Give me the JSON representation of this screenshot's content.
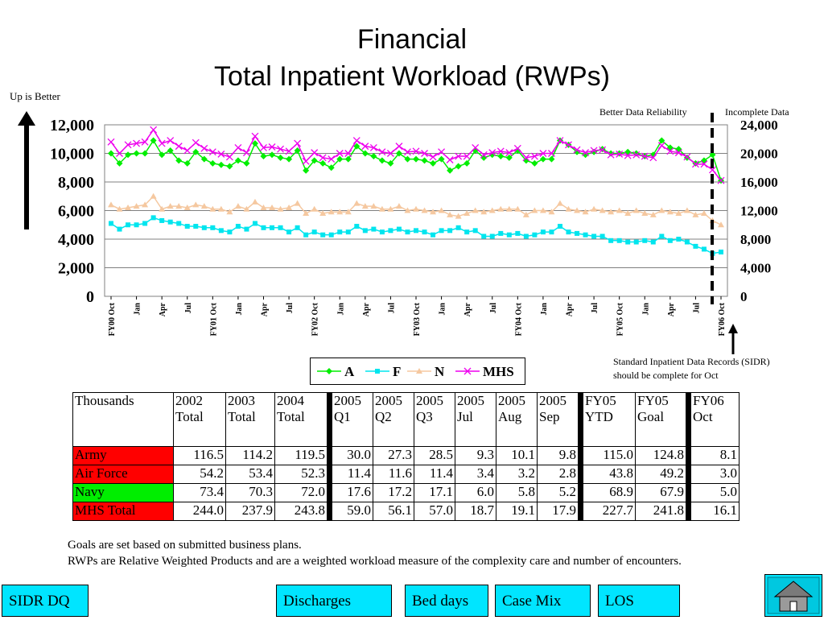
{
  "header": {
    "title_line1": "Financial",
    "title_line2": "Total Inpatient Workload (RWPs)"
  },
  "labels": {
    "up_is_better": "Up is Better",
    "better_data": "Better Data Reliability",
    "incomplete_data": "Incomplete Data",
    "sidr_note_line1": "Standard Inpatient Data Records (SIDR)",
    "sidr_note_line2": "should be complete for Oct"
  },
  "chart_data": {
    "type": "line",
    "left_axis": {
      "min": 0,
      "max": 12000,
      "ticks": [
        "0",
        "2,000",
        "4,000",
        "6,000",
        "8,000",
        "10,000",
        "12,000"
      ]
    },
    "right_axis": {
      "min": 0,
      "max": 24000,
      "ticks": [
        "0",
        "4,000",
        "8,000",
        "12,000",
        "16,000",
        "20,000",
        "24,000"
      ],
      "series": "MHS"
    },
    "x_tick_labels": [
      "FY00 Oct",
      "Jan",
      "Apr",
      "Jul",
      "FY01 Oct",
      "Jan",
      "Apr",
      "Jul",
      "FY02 Oct",
      "Jan",
      "Apr",
      "Jul",
      "FY03 Oct",
      "Jan",
      "Apr",
      "Jul",
      "FY04 Oct",
      "Jan",
      "Apr",
      "Jul",
      "FY05 Oct",
      "Jan",
      "Apr",
      "Jul",
      "FY06 Oct"
    ],
    "legend": [
      "A",
      "F",
      "N",
      "MHS"
    ],
    "colors": {
      "A": "#00ee00",
      "F": "#00e5ee",
      "N": "#f5c8a0",
      "MHS": "#ee00ee"
    },
    "series": [
      {
        "name": "A",
        "values": [
          10000,
          9300,
          9900,
          10000,
          10000,
          10900,
          9900,
          10200,
          9500,
          9300,
          10100,
          9600,
          9300,
          9200,
          9100,
          9500,
          9300,
          10700,
          9800,
          9900,
          9700,
          9600,
          10200,
          8800,
          9500,
          9300,
          9000,
          9600,
          9600,
          10500,
          10000,
          9800,
          9500,
          9300,
          10000,
          9600,
          9600,
          9500,
          9300,
          9600,
          8800,
          9100,
          9300,
          10200,
          9700,
          9900,
          9800,
          9700,
          10200,
          9500,
          9300,
          9600,
          9600,
          10900,
          10600,
          10100,
          9900,
          10100,
          10300,
          10000,
          10000,
          10100,
          10000,
          9800,
          9900,
          10900,
          10400,
          10300,
          9700,
          9300,
          9500,
          9900,
          8100
        ]
      },
      {
        "name": "F",
        "values": [
          5100,
          4700,
          5000,
          5000,
          5100,
          5500,
          5300,
          5200,
          5100,
          4900,
          4900,
          4800,
          4800,
          4600,
          4500,
          4900,
          4700,
          5100,
          4800,
          4800,
          4800,
          4500,
          4800,
          4300,
          4500,
          4300,
          4300,
          4500,
          4500,
          4900,
          4600,
          4700,
          4500,
          4600,
          4700,
          4500,
          4600,
          4500,
          4300,
          4600,
          4600,
          4800,
          4500,
          4600,
          4200,
          4200,
          4400,
          4300,
          4400,
          4200,
          4300,
          4500,
          4500,
          4900,
          4500,
          4400,
          4300,
          4200,
          4200,
          3900,
          3900,
          3800,
          3800,
          3900,
          3800,
          4200,
          3900,
          4000,
          3800,
          3500,
          3300,
          3000,
          3100
        ]
      },
      {
        "name": "N",
        "values": [
          6400,
          6100,
          6200,
          6300,
          6400,
          7000,
          6100,
          6300,
          6300,
          6200,
          6400,
          6300,
          6100,
          6100,
          5900,
          6300,
          6100,
          6600,
          6200,
          6200,
          6100,
          6200,
          6500,
          5800,
          6100,
          5800,
          5900,
          5900,
          5900,
          6500,
          6300,
          6300,
          6100,
          6100,
          6300,
          6000,
          6100,
          6000,
          5900,
          6000,
          5700,
          5600,
          5800,
          6000,
          5900,
          6000,
          6100,
          6100,
          6100,
          5700,
          6000,
          6000,
          5900,
          6500,
          6100,
          6000,
          5900,
          6100,
          6000,
          5900,
          6000,
          5800,
          6000,
          5800,
          5700,
          6000,
          5900,
          5800,
          6000,
          5700,
          5800,
          5300,
          5000
        ]
      },
      {
        "name": "MHS",
        "values": [
          21600,
          20000,
          21200,
          21400,
          21600,
          23300,
          21400,
          21800,
          21000,
          20400,
          21500,
          20700,
          20200,
          19900,
          19500,
          20800,
          20100,
          22400,
          20800,
          20900,
          20600,
          20300,
          21400,
          18900,
          20100,
          19400,
          19200,
          20000,
          20000,
          21800,
          21000,
          20800,
          20200,
          20000,
          21000,
          20200,
          20300,
          20000,
          19500,
          20200,
          19100,
          19600,
          19600,
          20800,
          19800,
          20100,
          20300,
          20100,
          20700,
          19400,
          19600,
          20000,
          20000,
          21800,
          21200,
          20500,
          20100,
          20400,
          20500,
          19800,
          19900,
          19700,
          19800,
          19600,
          19400,
          21100,
          20300,
          20100,
          19500,
          18500,
          18500,
          17700,
          16200
        ]
      }
    ]
  },
  "table": {
    "headers": [
      [
        "Thousands",
        ""
      ],
      [
        "2002",
        "Total"
      ],
      [
        "2003",
        "Total"
      ],
      [
        "2004",
        "Total"
      ],
      [
        "2005",
        "Q1"
      ],
      [
        "2005",
        "Q2"
      ],
      [
        "2005",
        "Q3"
      ],
      [
        "2005",
        "Jul"
      ],
      [
        "2005",
        "Aug"
      ],
      [
        "2005",
        "Sep"
      ],
      [
        "FY05",
        "YTD"
      ],
      [
        "FY05",
        "Goal"
      ],
      [
        "FY06",
        "Oct"
      ]
    ],
    "rows": [
      {
        "label": "Army",
        "color": "#ff0000",
        "values": [
          "116.5",
          "114.2",
          "119.5",
          "30.0",
          "27.3",
          "28.5",
          "9.3",
          "10.1",
          "9.8",
          "115.0",
          "124.8",
          "8.1"
        ]
      },
      {
        "label": "Air Force",
        "color": "#ff0000",
        "values": [
          "54.2",
          "53.4",
          "52.3",
          "11.4",
          "11.6",
          "11.4",
          "3.4",
          "3.2",
          "2.8",
          "43.8",
          "49.2",
          "3.0"
        ]
      },
      {
        "label": "Navy",
        "color": "#00ee00",
        "values": [
          "73.4",
          "70.3",
          "72.0",
          "17.6",
          "17.2",
          "17.1",
          "6.0",
          "5.8",
          "5.2",
          "68.9",
          "67.9",
          "5.0"
        ]
      },
      {
        "label": "MHS Total",
        "color": "#ff0000",
        "values": [
          "244.0",
          "237.9",
          "243.8",
          "59.0",
          "56.1",
          "57.0",
          "18.7",
          "19.1",
          "17.9",
          "227.7",
          "241.8",
          "16.1"
        ]
      }
    ]
  },
  "notes": {
    "line1": "Goals are set based on submitted business plans.",
    "line2": "RWPs are Relative Weighted Products and are a weighted workload measure of the complexity care and number of encounters."
  },
  "nav": {
    "sidr_dq": "SIDR DQ",
    "discharges": "Discharges",
    "bed_days": "Bed days",
    "case_mix": "Case Mix",
    "los": "LOS",
    "home_icon": "home-icon"
  }
}
